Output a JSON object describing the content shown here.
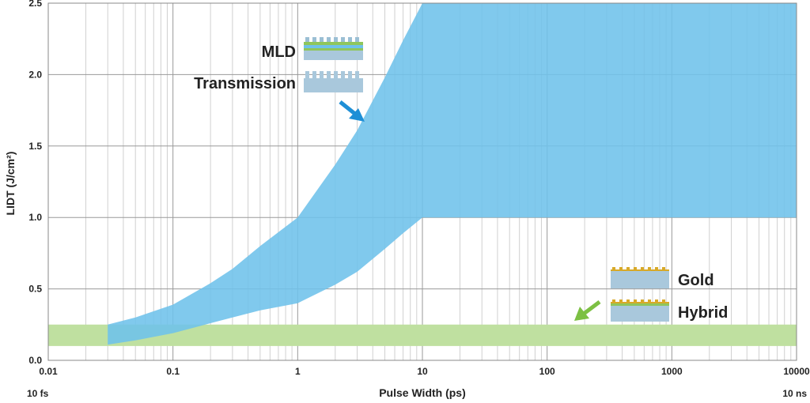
{
  "chart_data": {
    "type": "area",
    "xscale": "log",
    "xlim": [
      0.01,
      10000
    ],
    "ylim": [
      0,
      2.5
    ],
    "grid": true,
    "xlabel": "Pulse Width (ps)",
    "ylabel": "LIDT (J/cm²)",
    "x_ticks": [
      "0.01",
      "0.1",
      "1",
      "10",
      "100",
      "1000",
      "10000"
    ],
    "x_tick_values": [
      0.01,
      0.1,
      1,
      10,
      100,
      1000,
      10000
    ],
    "y_ticks": [
      "0.0",
      "0.5",
      "1.0",
      "1.5",
      "2.0",
      "2.5"
    ],
    "y_tick_values": [
      0,
      0.5,
      1.0,
      1.5,
      2.0,
      2.5
    ],
    "x_annotation_left": "10 fs",
    "x_annotation_right": "10 ns",
    "series": [
      {
        "name": "Gold / Hybrid",
        "color": "#bfe0a0",
        "x": [
          0.01,
          10000
        ],
        "lower": [
          0.1,
          0.1
        ],
        "upper": [
          0.25,
          0.25
        ]
      },
      {
        "name": "MLD / Transmission",
        "color": "#6ec1ea",
        "x": [
          0.03,
          0.05,
          0.1,
          0.2,
          0.3,
          0.5,
          1,
          2,
          3,
          5,
          7,
          10,
          100,
          1000,
          10000
        ],
        "lower": [
          0.11,
          0.14,
          0.19,
          0.26,
          0.3,
          0.35,
          0.4,
          0.53,
          0.62,
          0.78,
          0.89,
          1.0,
          1.0,
          1.0,
          1.0
        ],
        "upper": [
          0.25,
          0.3,
          0.39,
          0.54,
          0.64,
          0.8,
          1.0,
          1.37,
          1.61,
          1.98,
          2.24,
          2.5,
          2.5,
          2.5,
          2.5
        ]
      }
    ],
    "legend": [
      {
        "label": "MLD",
        "group": "MLD / Transmission",
        "placement": "upper-left"
      },
      {
        "label": "Transmission",
        "group": "MLD / Transmission",
        "placement": "upper-left"
      },
      {
        "label": "Gold",
        "group": "Gold / Hybrid",
        "placement": "lower-right"
      },
      {
        "label": "Hybrid",
        "group": "Gold / Hybrid",
        "placement": "lower-right"
      }
    ],
    "arrow_colors": {
      "blue": "#1e8fd6",
      "green": "#7cc043"
    }
  }
}
